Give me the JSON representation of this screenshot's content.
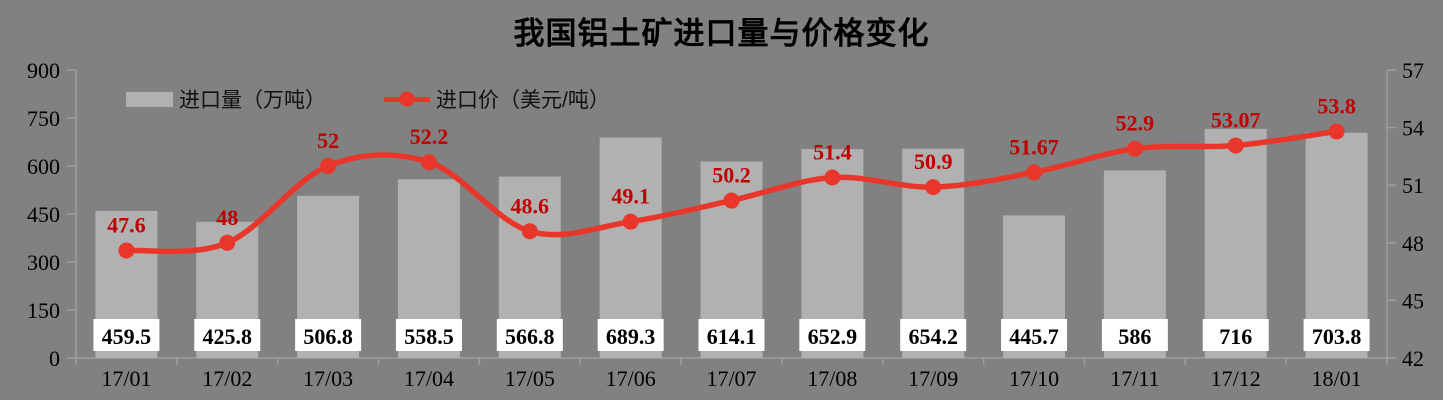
{
  "colors": {
    "background": "#818181",
    "bar": "#b1b1b1",
    "bar_label_bg": "#ffffff",
    "bar_label_text": "#000000",
    "line": "#e8372a",
    "line_label": "#c00000",
    "axis": "#9e9e9e",
    "text": "#000000"
  },
  "chart_data": {
    "type": "combo (bar + smooth line)",
    "title": "我国铝土矿进口量与价格变化",
    "categories": [
      "17/01",
      "17/02",
      "17/03",
      "17/04",
      "17/05",
      "17/06",
      "17/07",
      "17/08",
      "17/09",
      "17/10",
      "17/11",
      "17/12",
      "18/01"
    ],
    "series": [
      {
        "name": "进口量（万吨）",
        "type": "bar",
        "axis": "left",
        "values": [
          459.5,
          425.8,
          506.8,
          558.5,
          566.8,
          689.3,
          614.1,
          652.9,
          654.2,
          445.7,
          586,
          716,
          703.8
        ]
      },
      {
        "name": "进口价（美元/吨）",
        "type": "line",
        "axis": "right",
        "values": [
          47.6,
          48,
          52,
          52.2,
          48.6,
          49.1,
          50.2,
          51.4,
          50.9,
          51.67,
          52.9,
          53.07,
          53.8
        ]
      }
    ],
    "left_axis": {
      "min": 0,
      "max": 900,
      "step": 150,
      "ticks": [
        0,
        150,
        300,
        450,
        600,
        750,
        900
      ]
    },
    "right_axis": {
      "min": 42,
      "max": 57,
      "step": 3,
      "ticks": [
        42,
        45,
        48,
        51,
        54,
        57
      ]
    },
    "grid": "off",
    "legend_position": "top-left"
  }
}
